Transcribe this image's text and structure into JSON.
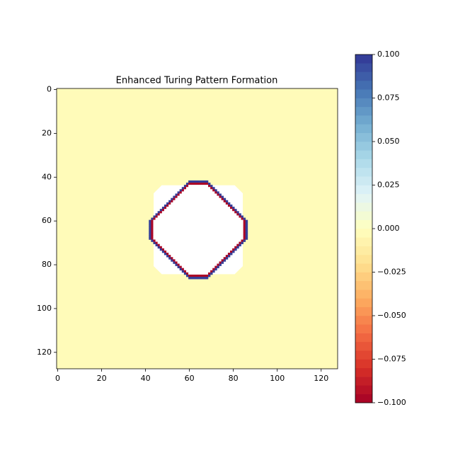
{
  "chart_data": {
    "type": "heatmap",
    "title": "Enhanced Turing Pattern Formation",
    "colormap": "RdYlBu",
    "levels": 40,
    "xlim": [
      -0.5,
      127.5
    ],
    "ylim": [
      127.5,
      -0.5
    ],
    "xticks": [
      0,
      20,
      40,
      60,
      80,
      100,
      120
    ],
    "yticks": [
      0,
      20,
      40,
      60,
      80,
      100,
      120
    ],
    "field": {
      "background": -0.002,
      "interior": null,
      "inner_ring": -0.1,
      "outer_ring": 0.1,
      "center": [
        64,
        64
      ],
      "half_width": 22,
      "diagonal_extent": 26
    },
    "clim": [
      -0.1,
      0.1
    ],
    "colorbar_ticks": [
      {
        "value": 0.1,
        "label": "0.100"
      },
      {
        "value": 0.075,
        "label": "0.075"
      },
      {
        "value": 0.05,
        "label": "0.050"
      },
      {
        "value": 0.025,
        "label": "0.025"
      },
      {
        "value": 0,
        "label": "0.000"
      },
      {
        "value": -0.025,
        "label": "−0.025"
      },
      {
        "value": -0.05,
        "label": "−0.050"
      },
      {
        "value": -0.075,
        "label": "−0.075"
      },
      {
        "value": -0.1,
        "label": "−0.100"
      }
    ]
  }
}
